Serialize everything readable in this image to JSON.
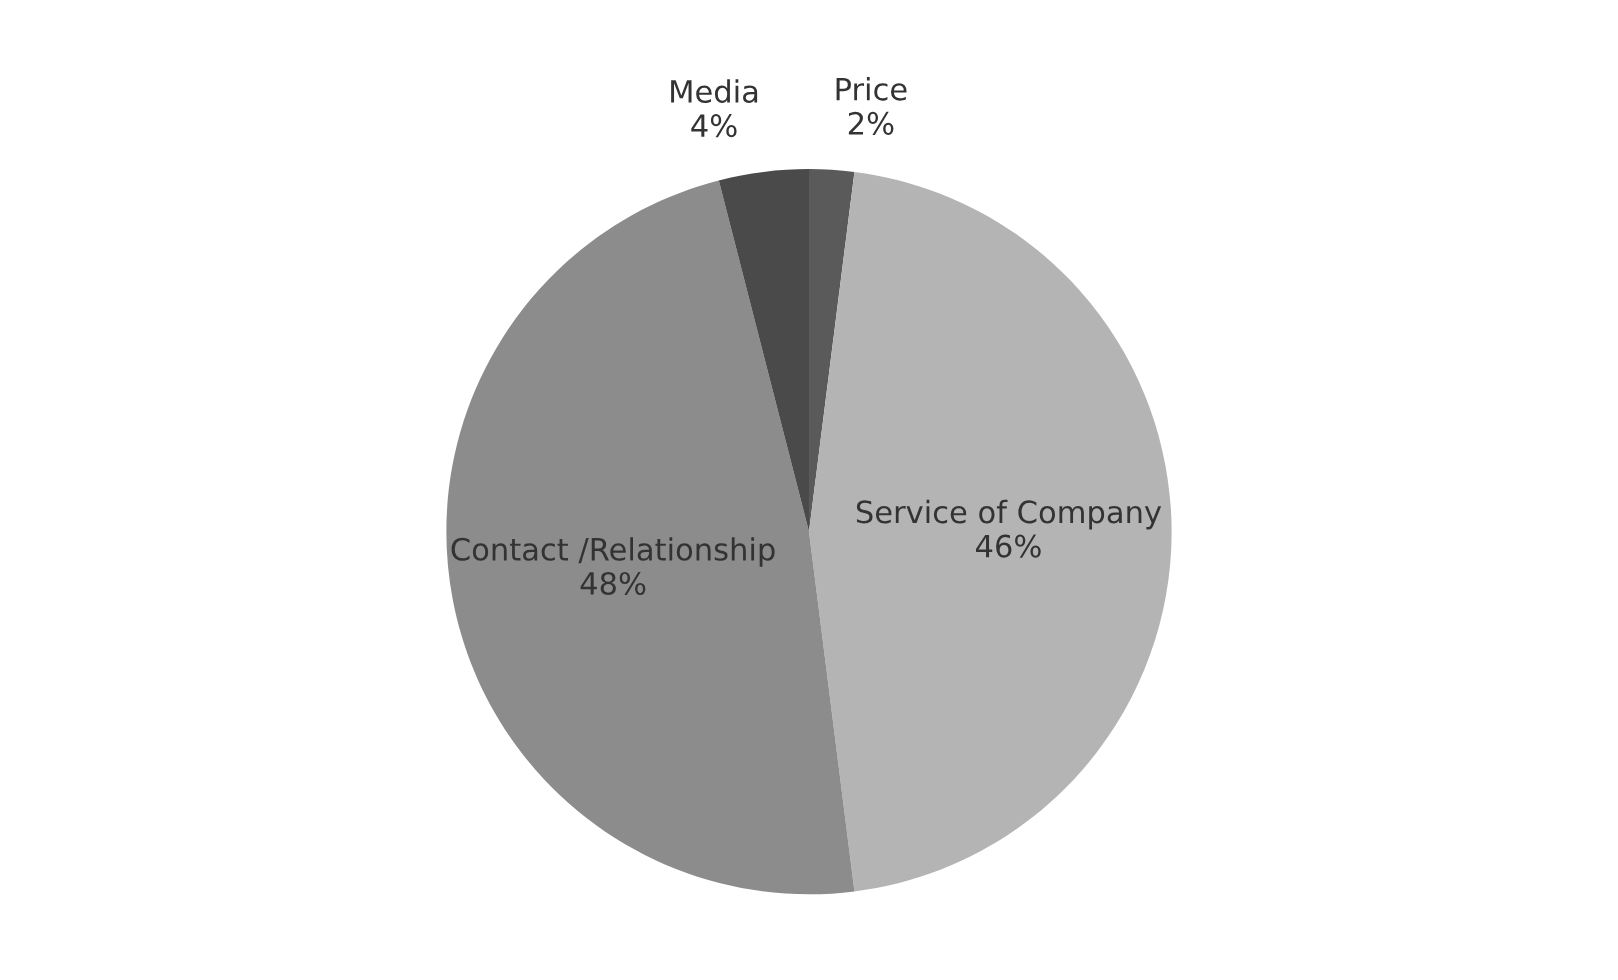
{
  "chart_data": {
    "type": "pie",
    "categories": [
      "Price",
      "Service of Company",
      "Contact /Relationship",
      "Media"
    ],
    "values": [
      2,
      46,
      48,
      4
    ],
    "colors": [
      "#5a5a5a",
      "#b4b4b4",
      "#8c8c8c",
      "#4a4a4a"
    ],
    "value_labels": [
      "2%",
      "46%",
      "48%",
      "4%"
    ],
    "legend": false
  }
}
